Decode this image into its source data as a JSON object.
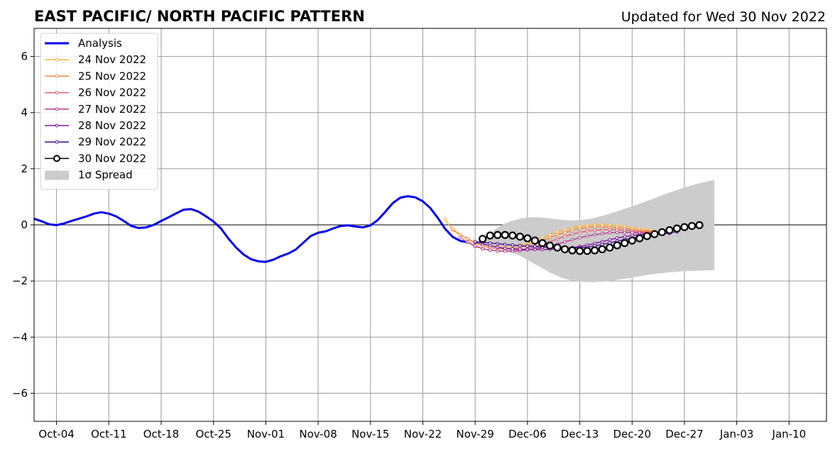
{
  "title": "EAST PACIFIC/ NORTH PACIFIC PATTERN",
  "updated": "Updated for Wed 30 Nov 2022",
  "chart_data": {
    "type": "line",
    "title": "EAST PACIFIC/ NORTH PACIFIC PATTERN",
    "subtitle": "Updated for Wed 30 Nov 2022",
    "xlabel": "",
    "ylabel": "",
    "xlim": [
      "2022-10-01",
      "2023-01-15"
    ],
    "ylim": [
      -7,
      7
    ],
    "x_ticks": [
      "2022-10-04",
      "2022-10-11",
      "2022-10-18",
      "2022-10-25",
      "2022-11-01",
      "2022-11-08",
      "2022-11-15",
      "2022-11-22",
      "2022-11-29",
      "2022-12-06",
      "2022-12-13",
      "2022-12-20",
      "2022-12-27",
      "2023-01-03",
      "2023-01-10"
    ],
    "x_tick_labels": [
      "Oct-04",
      "Oct-11",
      "Oct-18",
      "Oct-25",
      "Nov-01",
      "Nov-08",
      "Nov-15",
      "Nov-22",
      "Nov-29",
      "Dec-06",
      "Dec-13",
      "Dec-20",
      "Dec-27",
      "Jan-03",
      "Jan-10"
    ],
    "y_ticks": [
      -6,
      -4,
      -2,
      0,
      2,
      4,
      6
    ],
    "y_tick_labels": [
      "−6",
      "−4",
      "−2",
      "0",
      "2",
      "4",
      "6"
    ],
    "grid": true,
    "legend_position": "upper-left",
    "analysis": {
      "name": "Analysis",
      "color": "#0000ee",
      "x_start": "2022-10-01",
      "y": [
        0.22,
        0.13,
        0.02,
        -0.01,
        0.05,
        0.14,
        0.22,
        0.3,
        0.4,
        0.45,
        0.4,
        0.3,
        0.14,
        -0.04,
        -0.11,
        -0.09,
        0.0,
        0.14,
        0.27,
        0.41,
        0.54,
        0.56,
        0.47,
        0.3,
        0.12,
        -0.13,
        -0.49,
        -0.8,
        -1.05,
        -1.22,
        -1.3,
        -1.32,
        -1.24,
        -1.12,
        -1.02,
        -0.88,
        -0.64,
        -0.4,
        -0.28,
        -0.23,
        -0.13,
        -0.04,
        -0.02,
        -0.06,
        -0.09,
        -0.02,
        0.18,
        0.47,
        0.78,
        0.97,
        1.02,
        0.98,
        0.84,
        0.6,
        0.25,
        -0.15,
        -0.43,
        -0.57,
        -0.62
      ]
    },
    "spread": {
      "name": "1σ Spread",
      "color": "#cccccc",
      "x_start": "2022-11-30",
      "upper": [
        -0.5,
        -0.3,
        -0.1,
        0.05,
        0.15,
        0.22,
        0.26,
        0.27,
        0.26,
        0.23,
        0.2,
        0.17,
        0.16,
        0.17,
        0.2,
        0.25,
        0.32,
        0.4,
        0.48,
        0.57,
        0.66,
        0.75,
        0.85,
        0.95,
        1.05,
        1.15,
        1.24,
        1.33,
        1.41,
        1.48,
        1.55,
        1.6
      ],
      "lower": [
        -0.7,
        -0.8,
        -0.85,
        -0.92,
        -1.0,
        -1.1,
        -1.25,
        -1.4,
        -1.55,
        -1.7,
        -1.82,
        -1.92,
        -1.98,
        -2.02,
        -2.04,
        -2.04,
        -2.03,
        -2.0,
        -1.96,
        -1.92,
        -1.88,
        -1.83,
        -1.79,
        -1.75,
        -1.72,
        -1.69,
        -1.67,
        -1.65,
        -1.64,
        -1.63,
        -1.62,
        -1.61
      ]
    },
    "forecasts": [
      {
        "name": "24 Nov 2022",
        "color": "#fbb43e",
        "x_start": "2022-11-25",
        "y": [
          0.2,
          -0.2,
          -0.35,
          -0.5,
          -0.62,
          -0.68,
          -0.75,
          -0.78,
          -0.78,
          -0.76,
          -0.72,
          -0.66,
          -0.56,
          -0.45,
          -0.35,
          -0.25,
          -0.17,
          -0.1,
          -0.05,
          -0.02,
          0.0,
          0.0,
          -0.01,
          -0.03,
          -0.06,
          -0.1,
          -0.14,
          -0.18,
          -0.21
        ]
      },
      {
        "name": "25 Nov 2022",
        "color": "#f6863a",
        "x_start": "2022-11-26",
        "y": [
          -0.15,
          -0.35,
          -0.5,
          -0.65,
          -0.75,
          -0.82,
          -0.85,
          -0.86,
          -0.84,
          -0.8,
          -0.74,
          -0.66,
          -0.56,
          -0.45,
          -0.35,
          -0.27,
          -0.19,
          -0.13,
          -0.09,
          -0.07,
          -0.07,
          -0.08,
          -0.1,
          -0.13,
          -0.17,
          -0.21,
          -0.23,
          -0.25,
          -0.26
        ]
      },
      {
        "name": "26 Nov 2022",
        "color": "#e05f6d",
        "x_start": "2022-11-27",
        "y": [
          -0.45,
          -0.62,
          -0.77,
          -0.85,
          -0.9,
          -0.93,
          -0.94,
          -0.93,
          -0.9,
          -0.85,
          -0.78,
          -0.69,
          -0.6,
          -0.5,
          -0.41,
          -0.33,
          -0.27,
          -0.22,
          -0.19,
          -0.17,
          -0.17,
          -0.18,
          -0.2,
          -0.22,
          -0.25,
          -0.26,
          -0.27,
          -0.27,
          -0.26
        ]
      },
      {
        "name": "27 Nov 2022",
        "color": "#b33a8c",
        "x_start": "2022-11-28",
        "y": [
          -0.62,
          -0.75,
          -0.85,
          -0.9,
          -0.93,
          -0.94,
          -0.94,
          -0.92,
          -0.89,
          -0.86,
          -0.81,
          -0.75,
          -0.68,
          -0.61,
          -0.53,
          -0.46,
          -0.4,
          -0.35,
          -0.31,
          -0.28,
          -0.27,
          -0.27,
          -0.28,
          -0.29,
          -0.3,
          -0.31,
          -0.31,
          -0.3
        ]
      },
      {
        "name": "28 Nov 2022",
        "color": "#8014a0",
        "x_start": "2022-11-29",
        "y": [
          -0.62,
          -0.68,
          -0.74,
          -0.8,
          -0.84,
          -0.86,
          -0.87,
          -0.88,
          -0.88,
          -0.88,
          -0.87,
          -0.86,
          -0.84,
          -0.81,
          -0.77,
          -0.72,
          -0.66,
          -0.6,
          -0.53,
          -0.47,
          -0.42,
          -0.38,
          -0.35,
          -0.33,
          -0.32,
          -0.31,
          -0.3
        ]
      },
      {
        "name": "29 Nov 2022",
        "color": "#470a9b",
        "x_start": "2022-11-29",
        "y": [
          -0.6,
          -0.62,
          -0.65,
          -0.67,
          -0.7,
          -0.72,
          -0.74,
          -0.76,
          -0.77,
          -0.79,
          -0.8,
          -0.81,
          -0.82,
          -0.82,
          -0.81,
          -0.79,
          -0.75,
          -0.7,
          -0.64,
          -0.58,
          -0.52,
          -0.47,
          -0.42,
          -0.38,
          -0.34,
          -0.3,
          -0.27,
          -0.25
        ]
      },
      {
        "name": "30 Nov 2022",
        "color": "#000000",
        "marker": "open-circle",
        "x_start": "2022-11-30",
        "y": [
          -0.5,
          -0.38,
          -0.36,
          -0.36,
          -0.38,
          -0.42,
          -0.48,
          -0.56,
          -0.65,
          -0.74,
          -0.81,
          -0.87,
          -0.91,
          -0.93,
          -0.93,
          -0.91,
          -0.87,
          -0.81,
          -0.73,
          -0.65,
          -0.56,
          -0.48,
          -0.4,
          -0.33,
          -0.26,
          -0.19,
          -0.13,
          -0.08,
          -0.04,
          -0.01
        ]
      }
    ]
  }
}
